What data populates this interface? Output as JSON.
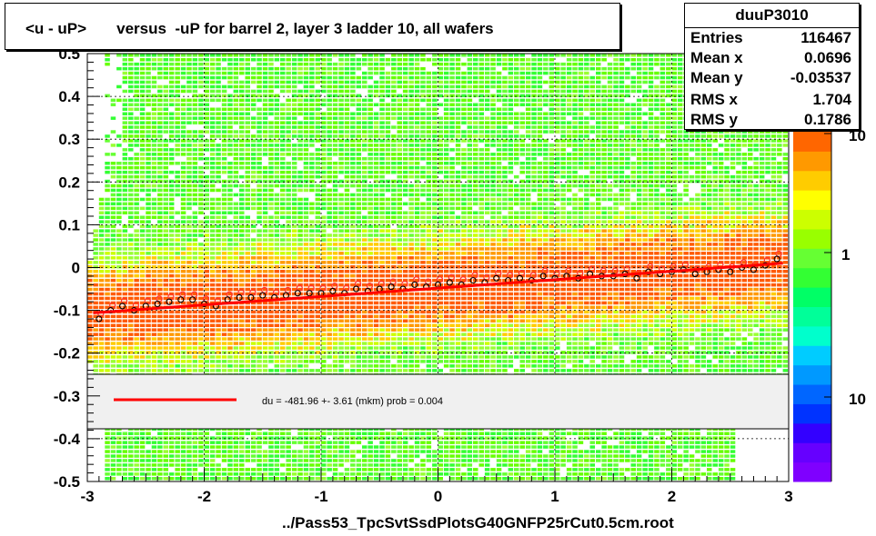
{
  "title": "<u - uP>       versus  -uP for barrel 2, layer 3 ladder 10, all wafers",
  "stats": {
    "name": "duuP3010",
    "rows": [
      {
        "label": "Entries",
        "value": "116467"
      },
      {
        "label": "Mean x",
        "value": "0.0696"
      },
      {
        "label": "Mean y",
        "value": "-0.03537"
      },
      {
        "label": "RMS x",
        "value": "1.704"
      },
      {
        "label": "RMS y",
        "value": "0.1786"
      }
    ]
  },
  "footer": "../Pass53_TpcSvtSsdPlotsG40GNFP25rCut0.5cm.root",
  "fit_legend": "du = -481.96 +-  3.61 (mkm) prob = 0.004",
  "colors": {
    "fit_line": "#ff0000",
    "profile_red": "#ff3030",
    "profile_black": "#000000"
  },
  "chart_data": {
    "type": "heatmap",
    "xlim": [
      -3,
      3
    ],
    "ylim": [
      -0.5,
      0.5
    ],
    "x_ticks": [
      "-3",
      "-2",
      "-1",
      "0",
      "1",
      "2",
      "3"
    ],
    "y_ticks": [
      "-0.5",
      "-0.4",
      "-0.3",
      "-0.2",
      "-0.1",
      "0",
      "0.1",
      "0.2",
      "0.3",
      "0.4",
      "0.5"
    ],
    "colorbar_labels": [
      "10",
      "1",
      "10"
    ],
    "grid": true,
    "fit_line": {
      "x": [
        -2.95,
        2.95
      ],
      "y": [
        -0.106,
        0.01
      ]
    },
    "profile_points": {
      "x": [
        -2.9,
        -2.8,
        -2.7,
        -2.6,
        -2.5,
        -2.4,
        -2.3,
        -2.2,
        -2.1,
        -2.0,
        -1.9,
        -1.8,
        -1.7,
        -1.6,
        -1.5,
        -1.4,
        -1.3,
        -1.2,
        -1.1,
        -1.0,
        -0.9,
        -0.8,
        -0.7,
        -0.6,
        -0.5,
        -0.4,
        -0.3,
        -0.2,
        -0.1,
        0.0,
        0.1,
        0.2,
        0.3,
        0.4,
        0.5,
        0.6,
        0.7,
        0.8,
        0.9,
        1.0,
        1.1,
        1.2,
        1.3,
        1.4,
        1.5,
        1.6,
        1.7,
        1.8,
        1.9,
        2.0,
        2.1,
        2.2,
        2.3,
        2.4,
        2.5,
        2.6,
        2.7,
        2.8,
        2.9
      ],
      "y": [
        -0.12,
        -0.1,
        -0.09,
        -0.1,
        -0.09,
        -0.085,
        -0.08,
        -0.075,
        -0.075,
        -0.085,
        -0.09,
        -0.075,
        -0.07,
        -0.07,
        -0.065,
        -0.07,
        -0.065,
        -0.06,
        -0.06,
        -0.06,
        -0.055,
        -0.06,
        -0.05,
        -0.055,
        -0.05,
        -0.045,
        -0.05,
        -0.04,
        -0.045,
        -0.04,
        -0.035,
        -0.04,
        -0.03,
        -0.035,
        -0.025,
        -0.03,
        -0.025,
        -0.03,
        -0.02,
        -0.025,
        -0.02,
        -0.025,
        -0.015,
        -0.02,
        -0.02,
        -0.015,
        -0.025,
        -0.01,
        -0.015,
        -0.01,
        -0.005,
        -0.015,
        -0.01,
        -0.005,
        -0.01,
        0.0,
        -0.005,
        0.005,
        0.02
      ]
    }
  }
}
